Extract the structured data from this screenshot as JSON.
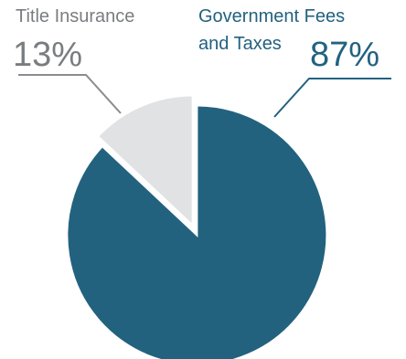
{
  "chart_data": {
    "type": "pie",
    "title": "",
    "slices": [
      {
        "label_lines": [
          "Government Fees",
          "and Taxes"
        ],
        "value": 87,
        "value_label": "87%",
        "color": "#22627f"
      },
      {
        "label_lines": [
          "Title Insurance"
        ],
        "value": 13,
        "value_label": "13%",
        "color": "#e1e2e4"
      }
    ],
    "label_text_colors": {
      "Government Fees and Taxes": "#22627f",
      "Title Insurance": "#7a7d80"
    },
    "leader_line_color": "#8a8c8e"
  }
}
